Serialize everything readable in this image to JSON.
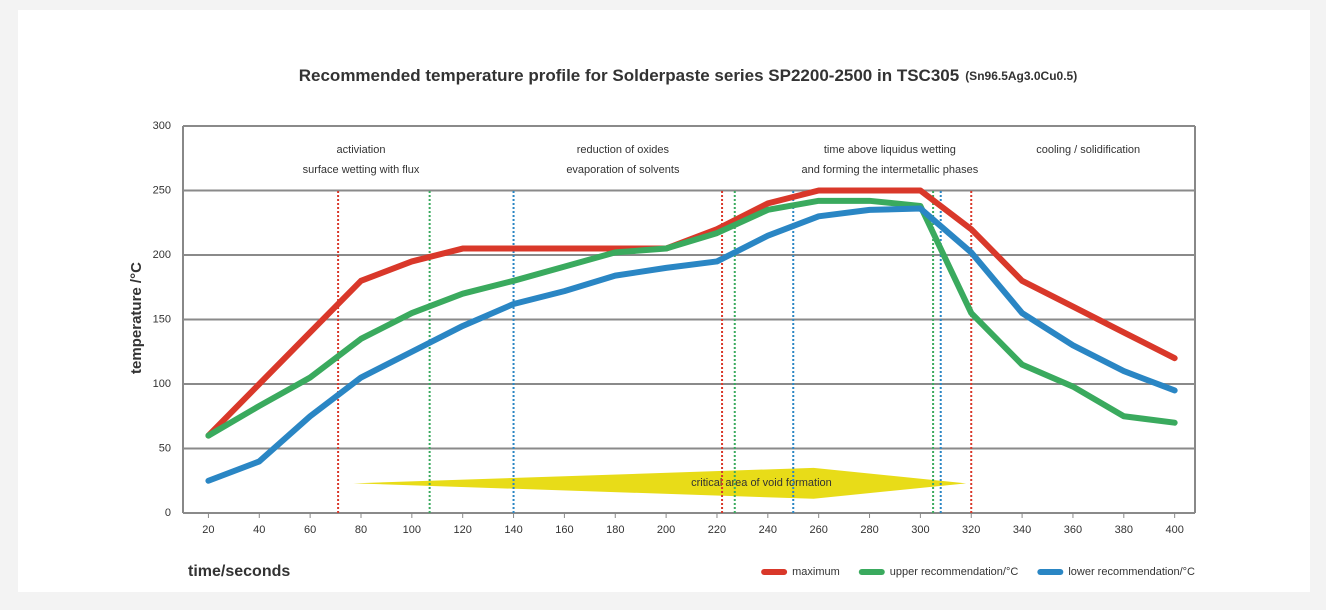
{
  "chart_data": {
    "type": "line",
    "title": "Recommended temperature profile for Solderpaste series SP2200-2500 in TSC305",
    "title_note": "(Sn96.5Ag3.0Cu0.5)",
    "y_label": "temperature /°C",
    "x_label": "time/seconds",
    "x": [
      20,
      40,
      60,
      80,
      100,
      120,
      140,
      160,
      180,
      200,
      220,
      240,
      260,
      280,
      300,
      320,
      340,
      360,
      380,
      400
    ],
    "series": [
      {
        "name": "maximum",
        "color": "#d9382a",
        "values": [
          60,
          100,
          140,
          180,
          195,
          205,
          205,
          205,
          205,
          205,
          220,
          240,
          250,
          250,
          250,
          220,
          180,
          160,
          140,
          120
        ]
      },
      {
        "name": "upper recommendation/°C",
        "color": "#3aaa5e",
        "values": [
          60,
          83,
          105,
          135,
          155,
          170,
          180,
          191,
          202,
          205,
          217,
          235,
          242,
          242,
          238,
          155,
          115,
          98,
          75,
          70
        ]
      },
      {
        "name": "lower recommendation/°C",
        "color": "#2a86c4",
        "values": [
          25,
          40,
          75,
          105,
          125,
          145,
          162,
          172,
          184,
          190,
          195,
          215,
          230,
          235,
          236,
          202,
          155,
          130,
          110,
          95
        ]
      }
    ],
    "xlim": [
      10,
      408
    ],
    "xticks": [
      20,
      40,
      60,
      80,
      100,
      120,
      140,
      160,
      180,
      200,
      220,
      240,
      260,
      280,
      300,
      320,
      340,
      360,
      380,
      400
    ],
    "ylim": [
      0,
      300
    ],
    "yticks": [
      0,
      50,
      100,
      150,
      200,
      250,
      300
    ],
    "grid": true,
    "vlines": [
      {
        "x": 71,
        "color": "#d9382a"
      },
      {
        "x": 222,
        "color": "#d9382a"
      },
      {
        "x": 320,
        "color": "#d9382a"
      },
      {
        "x": 107,
        "color": "#3aaa5e"
      },
      {
        "x": 227,
        "color": "#3aaa5e"
      },
      {
        "x": 305,
        "color": "#3aaa5e"
      },
      {
        "x": 140,
        "color": "#2a86c4"
      },
      {
        "x": 250,
        "color": "#2a86c4"
      },
      {
        "x": 308,
        "color": "#2a86c4"
      }
    ],
    "vline_ylim": [
      0,
      250
    ],
    "phases": [
      {
        "x": 80,
        "lines": [
          "activiation",
          "surface wetting with flux"
        ]
      },
      {
        "x": 183,
        "lines": [
          "reduction of oxides",
          "evaporation of solvents"
        ]
      },
      {
        "x": 288,
        "lines": [
          "time above liquidus wetting",
          "and forming the intermetallic phases"
        ]
      },
      {
        "x": 366,
        "lines": [
          "cooling / solidification"
        ]
      }
    ],
    "void_area": {
      "label": "critical area of void formation",
      "xrange": [
        77,
        318
      ],
      "peak_x": 258,
      "y": 23,
      "half_height": 12,
      "color": "#e8dc18"
    },
    "legend": "bottom-right"
  }
}
